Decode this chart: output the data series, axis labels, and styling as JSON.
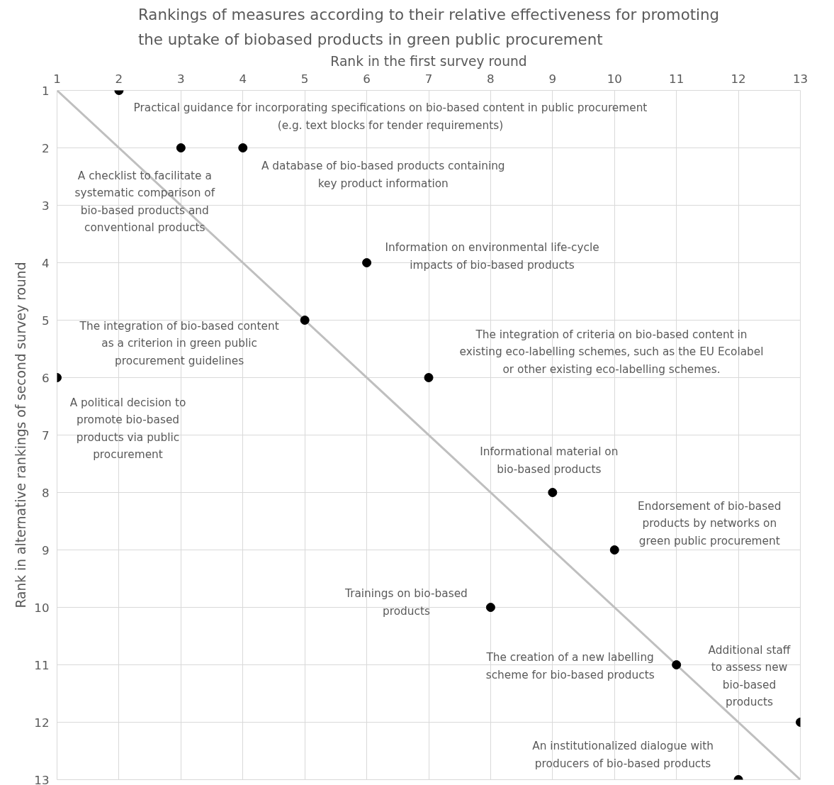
{
  "chart_data": {
    "type": "scatter",
    "title": "Rankings of measures according to their relative effectiveness for promoting\nthe uptake of biobased products in green public procurement",
    "xlabel": "Rank in the first survey round",
    "ylabel": "Rank in alternative rankings of second survey round",
    "x": [
      2,
      3,
      4,
      6,
      5,
      1,
      7,
      9,
      10,
      8,
      11,
      13,
      12
    ],
    "series": [
      {
        "color": "#000000",
        "marker": "circle",
        "values": [
          1,
          2,
          2,
          4,
          5,
          6,
          6,
          8,
          9,
          10,
          11,
          12,
          13
        ]
      },
      {
        "type": "line",
        "color": "#bfbfbf",
        "x": [
          1,
          13
        ],
        "values": [
          1,
          13
        ]
      }
    ],
    "xlim": [
      1,
      13
    ],
    "ylim": [
      13,
      1
    ],
    "xticks": [
      1,
      2,
      3,
      4,
      5,
      6,
      7,
      8,
      9,
      10,
      11,
      12,
      13
    ],
    "yticks": [
      1,
      2,
      3,
      4,
      5,
      6,
      7,
      8,
      9,
      10,
      11,
      12,
      13
    ],
    "grid": true,
    "annotations": [
      {
        "text": "Practical guidance for incorporating specifications on bio-based content in public procurement\n(e.g. text blocks for tender requirements)",
        "x": 2,
        "y": 1
      },
      {
        "text": "A checklist to facilitate a\nsystematic comparison of\nbio-based products and\nconventional products",
        "x": 3,
        "y": 2
      },
      {
        "text": "A database of bio-based products containing\nkey product information",
        "x": 4,
        "y": 2
      },
      {
        "text": "Information on environmental life-cycle\nimpacts of bio-based products",
        "x": 6,
        "y": 4
      },
      {
        "text": "The integration of bio-based content\nas a criterion in green public\nprocurement guidelines",
        "x": 5,
        "y": 5
      },
      {
        "text": "A political decision to\npromote bio-based\nproducts via public\nprocurement",
        "x": 1,
        "y": 6
      },
      {
        "text": "The integration of criteria on bio-based content in\nexisting eco-labelling schemes, such as the EU Ecolabel\nor other existing eco-labelling schemes.",
        "x": 7,
        "y": 6
      },
      {
        "text": "Informational material on\nbio-based products",
        "x": 9,
        "y": 8
      },
      {
        "text": "Endorsement of bio-based\nproducts by networks on\ngreen public procurement",
        "x": 10,
        "y": 9
      },
      {
        "text": "Trainings on bio-based\nproducts",
        "x": 8,
        "y": 10
      },
      {
        "text": "The creation of a new labelling\nscheme for bio-based products",
        "x": 11,
        "y": 11
      },
      {
        "text": "Additional staff\nto assess new\nbio-based\nproducts",
        "x": 13,
        "y": 12
      },
      {
        "text": "An institutionalized dialogue with\nproducers of bio-based products",
        "x": 12,
        "y": 13
      }
    ]
  }
}
